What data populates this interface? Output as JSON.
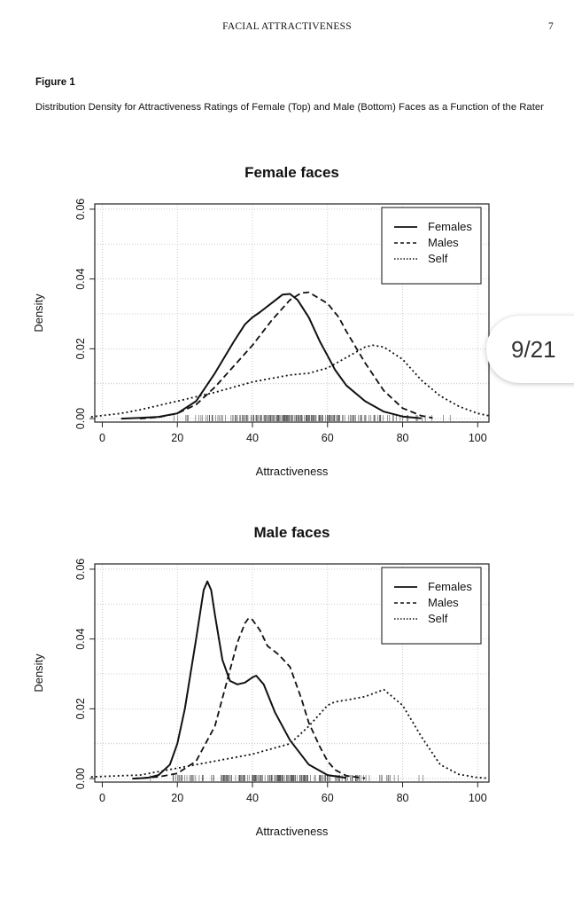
{
  "page": {
    "running_head": "FACIAL ATTRACTIVENESS",
    "page_number": "7",
    "figure_label": "Figure 1",
    "figure_caption": "Distribution Density for Attractiveness Ratings of Female (Top) and Male (Bottom) Faces as a Function of the Rater"
  },
  "viewer": {
    "page_indicator": "9/21"
  },
  "chart_data": [
    {
      "type": "line",
      "title": "Female faces",
      "xlabel": "Attractiveness",
      "ylabel": "Density",
      "xlim": [
        -2,
        103
      ],
      "ylim": [
        -0.001,
        0.0615
      ],
      "x_ticks": [
        0,
        20,
        40,
        60,
        80,
        100
      ],
      "y_ticks": [
        0.0,
        0.02,
        0.04,
        0.06
      ],
      "y_tick_labels": [
        "0.00",
        "0.02",
        "0.04",
        "0.06"
      ],
      "grid": true,
      "legend": "top-right",
      "series": [
        {
          "name": "Females",
          "style": "solid",
          "x": [
            5,
            10,
            15,
            20,
            25,
            30,
            35,
            38,
            40,
            42,
            45,
            48,
            50,
            52,
            55,
            58,
            60,
            62,
            65,
            70,
            75,
            80,
            85
          ],
          "y": [
            0.0,
            0.0002,
            0.0005,
            0.0015,
            0.005,
            0.013,
            0.022,
            0.027,
            0.029,
            0.0305,
            0.033,
            0.0355,
            0.0357,
            0.034,
            0.029,
            0.022,
            0.018,
            0.014,
            0.0095,
            0.005,
            0.002,
            0.0006,
            0.0001
          ]
        },
        {
          "name": "Males",
          "style": "dashed",
          "x": [
            10,
            15,
            20,
            25,
            30,
            35,
            40,
            45,
            50,
            53,
            55,
            60,
            63,
            65,
            70,
            75,
            80,
            85,
            88
          ],
          "y": [
            0.0,
            0.0004,
            0.0015,
            0.004,
            0.009,
            0.015,
            0.021,
            0.028,
            0.034,
            0.036,
            0.0362,
            0.033,
            0.029,
            0.025,
            0.016,
            0.008,
            0.003,
            0.0008,
            0.0002
          ]
        },
        {
          "name": "Self",
          "style": "dotted",
          "x": [
            -3,
            5,
            10,
            20,
            30,
            40,
            50,
            55,
            60,
            65,
            70,
            72,
            75,
            80,
            85,
            90,
            95,
            100,
            103
          ],
          "y": [
            0.0005,
            0.0015,
            0.0025,
            0.005,
            0.0075,
            0.0105,
            0.0125,
            0.013,
            0.0145,
            0.0175,
            0.0205,
            0.021,
            0.0205,
            0.017,
            0.011,
            0.0065,
            0.0035,
            0.0015,
            0.0008
          ]
        }
      ]
    },
    {
      "type": "line",
      "title": "Male faces",
      "xlabel": "Attractiveness",
      "ylabel": "Density",
      "xlim": [
        -2,
        103
      ],
      "ylim": [
        -0.001,
        0.0615
      ],
      "x_ticks": [
        0,
        20,
        40,
        60,
        80,
        100
      ],
      "y_ticks": [
        0.0,
        0.02,
        0.04,
        0.06
      ],
      "y_tick_labels": [
        "0.00",
        "0.02",
        "0.04",
        "0.06"
      ],
      "grid": true,
      "legend": "top-right",
      "series": [
        {
          "name": "Females",
          "style": "solid",
          "x": [
            8,
            12,
            15,
            18,
            20,
            22,
            25,
            27,
            28,
            29,
            30,
            32,
            34,
            36,
            38,
            40,
            41,
            43,
            46,
            50,
            55,
            60,
            65
          ],
          "y": [
            0.0,
            0.0002,
            0.001,
            0.004,
            0.01,
            0.02,
            0.04,
            0.054,
            0.0565,
            0.054,
            0.047,
            0.034,
            0.028,
            0.027,
            0.0275,
            0.029,
            0.0295,
            0.027,
            0.019,
            0.011,
            0.004,
            0.001,
            0.0002
          ]
        },
        {
          "name": "Males",
          "style": "dashed",
          "x": [
            8,
            15,
            20,
            25,
            30,
            33,
            36,
            38,
            39,
            40,
            42,
            44,
            47,
            50,
            53,
            55,
            58,
            60,
            62,
            65,
            70
          ],
          "y": [
            0.0,
            0.0005,
            0.0015,
            0.005,
            0.015,
            0.027,
            0.039,
            0.0445,
            0.046,
            0.0455,
            0.0425,
            0.038,
            0.0355,
            0.032,
            0.023,
            0.016,
            0.009,
            0.005,
            0.0025,
            0.0008,
            0.0001
          ]
        },
        {
          "name": "Self",
          "style": "dotted",
          "x": [
            -3,
            10,
            20,
            30,
            40,
            50,
            55,
            60,
            62,
            65,
            70,
            75,
            80,
            85,
            90,
            95,
            100,
            103
          ],
          "y": [
            0.0005,
            0.001,
            0.003,
            0.005,
            0.007,
            0.01,
            0.015,
            0.021,
            0.022,
            0.0225,
            0.0235,
            0.0255,
            0.021,
            0.012,
            0.004,
            0.0012,
            0.0003,
            0.0001
          ]
        }
      ]
    }
  ]
}
